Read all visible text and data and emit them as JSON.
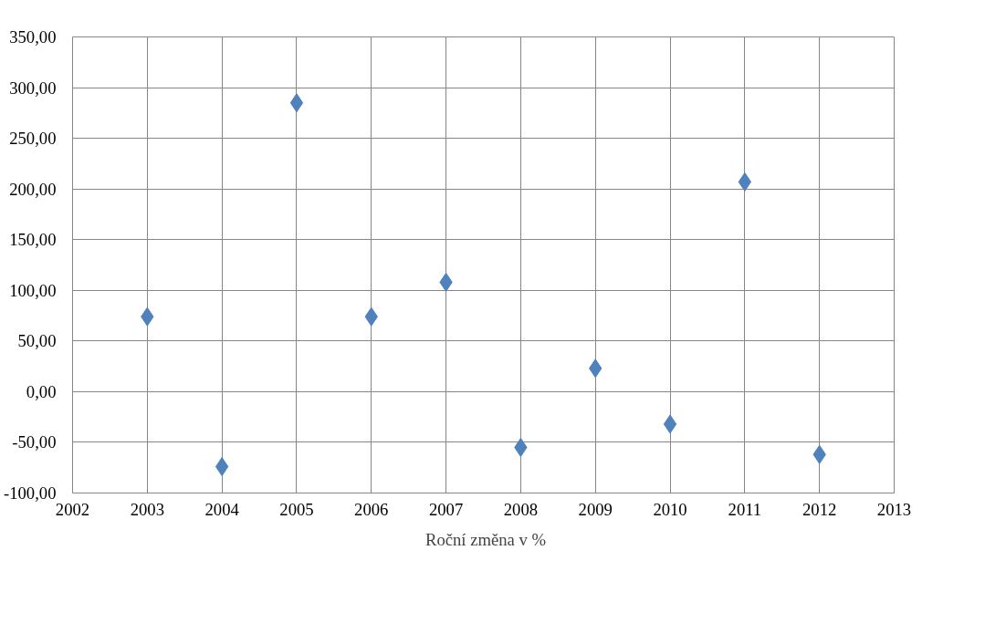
{
  "chart_data": {
    "type": "scatter",
    "x": [
      2003,
      2004,
      2005,
      2006,
      2007,
      2008,
      2009,
      2010,
      2011,
      2012
    ],
    "series": [
      {
        "name": "Roční změna v %",
        "color": "#4f81bd",
        "values": [
          74,
          -74,
          285,
          74,
          108,
          -55,
          23,
          -32,
          207,
          -62
        ]
      }
    ],
    "xlim": [
      2002,
      2013
    ],
    "xticks": [
      2002,
      2003,
      2004,
      2005,
      2006,
      2007,
      2008,
      2009,
      2010,
      2011,
      2012,
      2013
    ],
    "ylim": [
      -100,
      350
    ],
    "yticks": [
      {
        "value": -100,
        "label": "-100,00"
      },
      {
        "value": -50,
        "label": "-50,00"
      },
      {
        "value": 0,
        "label": "0,00"
      },
      {
        "value": 50,
        "label": "50,00"
      },
      {
        "value": 100,
        "label": "100,00"
      },
      {
        "value": 150,
        "label": "150,00"
      },
      {
        "value": 200,
        "label": "200,00"
      },
      {
        "value": 250,
        "label": "250,00"
      },
      {
        "value": 300,
        "label": "300,00"
      },
      {
        "value": 350,
        "label": "350,00"
      }
    ],
    "grid": true,
    "legend": "bottom",
    "marker": "diamond"
  }
}
